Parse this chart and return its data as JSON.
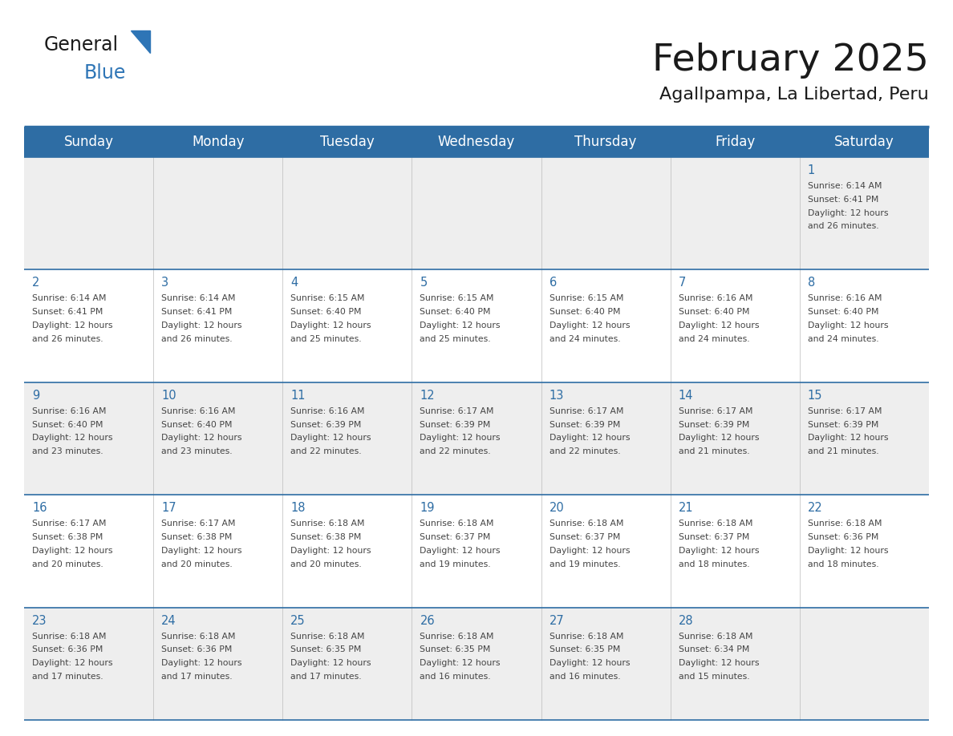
{
  "title": "February 2025",
  "subtitle": "Agallpampa, La Libertad, Peru",
  "header_bg_color": "#2E6DA4",
  "header_text_color": "#FFFFFF",
  "row_bg_colors": [
    "#EEEEEE",
    "#FFFFFF",
    "#EEEEEE",
    "#FFFFFF",
    "#EEEEEE"
  ],
  "border_color": "#2E6DA4",
  "day_number_color": "#2E6DA4",
  "info_text_color": "#444444",
  "weekdays": [
    "Sunday",
    "Monday",
    "Tuesday",
    "Wednesday",
    "Thursday",
    "Friday",
    "Saturday"
  ],
  "title_color": "#1a1a1a",
  "subtitle_color": "#1a1a1a",
  "logo_general_color": "#1a1a1a",
  "logo_blue_color": "#2E75B6",
  "calendar_data": [
    [
      null,
      null,
      null,
      null,
      null,
      null,
      {
        "day": 1,
        "sunrise": "6:14 AM",
        "sunset": "6:41 PM",
        "daylight": "12 hours and 26 minutes."
      }
    ],
    [
      {
        "day": 2,
        "sunrise": "6:14 AM",
        "sunset": "6:41 PM",
        "daylight": "12 hours and 26 minutes."
      },
      {
        "day": 3,
        "sunrise": "6:14 AM",
        "sunset": "6:41 PM",
        "daylight": "12 hours and 26 minutes."
      },
      {
        "day": 4,
        "sunrise": "6:15 AM",
        "sunset": "6:40 PM",
        "daylight": "12 hours and 25 minutes."
      },
      {
        "day": 5,
        "sunrise": "6:15 AM",
        "sunset": "6:40 PM",
        "daylight": "12 hours and 25 minutes."
      },
      {
        "day": 6,
        "sunrise": "6:15 AM",
        "sunset": "6:40 PM",
        "daylight": "12 hours and 24 minutes."
      },
      {
        "day": 7,
        "sunrise": "6:16 AM",
        "sunset": "6:40 PM",
        "daylight": "12 hours and 24 minutes."
      },
      {
        "day": 8,
        "sunrise": "6:16 AM",
        "sunset": "6:40 PM",
        "daylight": "12 hours and 24 minutes."
      }
    ],
    [
      {
        "day": 9,
        "sunrise": "6:16 AM",
        "sunset": "6:40 PM",
        "daylight": "12 hours and 23 minutes."
      },
      {
        "day": 10,
        "sunrise": "6:16 AM",
        "sunset": "6:40 PM",
        "daylight": "12 hours and 23 minutes."
      },
      {
        "day": 11,
        "sunrise": "6:16 AM",
        "sunset": "6:39 PM",
        "daylight": "12 hours and 22 minutes."
      },
      {
        "day": 12,
        "sunrise": "6:17 AM",
        "sunset": "6:39 PM",
        "daylight": "12 hours and 22 minutes."
      },
      {
        "day": 13,
        "sunrise": "6:17 AM",
        "sunset": "6:39 PM",
        "daylight": "12 hours and 22 minutes."
      },
      {
        "day": 14,
        "sunrise": "6:17 AM",
        "sunset": "6:39 PM",
        "daylight": "12 hours and 21 minutes."
      },
      {
        "day": 15,
        "sunrise": "6:17 AM",
        "sunset": "6:39 PM",
        "daylight": "12 hours and 21 minutes."
      }
    ],
    [
      {
        "day": 16,
        "sunrise": "6:17 AM",
        "sunset": "6:38 PM",
        "daylight": "12 hours and 20 minutes."
      },
      {
        "day": 17,
        "sunrise": "6:17 AM",
        "sunset": "6:38 PM",
        "daylight": "12 hours and 20 minutes."
      },
      {
        "day": 18,
        "sunrise": "6:18 AM",
        "sunset": "6:38 PM",
        "daylight": "12 hours and 20 minutes."
      },
      {
        "day": 19,
        "sunrise": "6:18 AM",
        "sunset": "6:37 PM",
        "daylight": "12 hours and 19 minutes."
      },
      {
        "day": 20,
        "sunrise": "6:18 AM",
        "sunset": "6:37 PM",
        "daylight": "12 hours and 19 minutes."
      },
      {
        "day": 21,
        "sunrise": "6:18 AM",
        "sunset": "6:37 PM",
        "daylight": "12 hours and 18 minutes."
      },
      {
        "day": 22,
        "sunrise": "6:18 AM",
        "sunset": "6:36 PM",
        "daylight": "12 hours and 18 minutes."
      }
    ],
    [
      {
        "day": 23,
        "sunrise": "6:18 AM",
        "sunset": "6:36 PM",
        "daylight": "12 hours and 17 minutes."
      },
      {
        "day": 24,
        "sunrise": "6:18 AM",
        "sunset": "6:36 PM",
        "daylight": "12 hours and 17 minutes."
      },
      {
        "day": 25,
        "sunrise": "6:18 AM",
        "sunset": "6:35 PM",
        "daylight": "12 hours and 17 minutes."
      },
      {
        "day": 26,
        "sunrise": "6:18 AM",
        "sunset": "6:35 PM",
        "daylight": "12 hours and 16 minutes."
      },
      {
        "day": 27,
        "sunrise": "6:18 AM",
        "sunset": "6:35 PM",
        "daylight": "12 hours and 16 minutes."
      },
      {
        "day": 28,
        "sunrise": "6:18 AM",
        "sunset": "6:34 PM",
        "daylight": "12 hours and 15 minutes."
      },
      null
    ]
  ]
}
